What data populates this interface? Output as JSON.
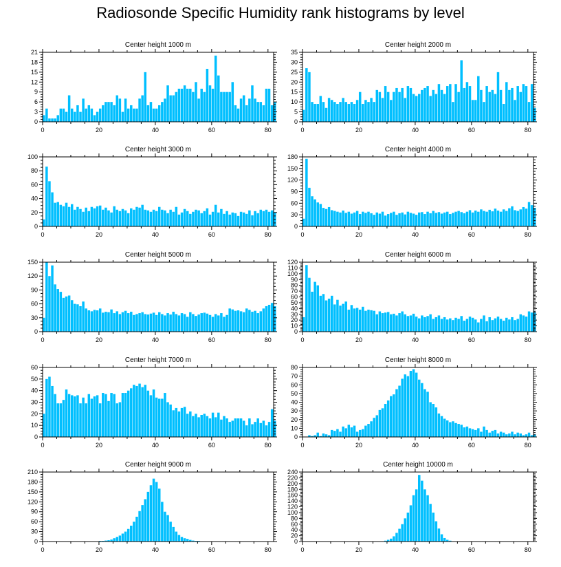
{
  "title": "Radiosonde Specific Humidity rank histograms by level",
  "bar_color": "#00bfff",
  "chart_data": [
    {
      "type": "bar",
      "title": "Center height 1000 m",
      "xlim": [
        0,
        82
      ],
      "ylim": [
        0,
        21
      ],
      "yticks": [
        0,
        3,
        6,
        9,
        12,
        15,
        18,
        21
      ],
      "xticks": [
        0,
        20,
        40,
        60,
        80
      ],
      "values": [
        2,
        4,
        1,
        1,
        1,
        2,
        4,
        4,
        3,
        8,
        4,
        3,
        5,
        3,
        7,
        4,
        5,
        4,
        2,
        3,
        4,
        5,
        6,
        6,
        6,
        5,
        8,
        7,
        3,
        7,
        4,
        5,
        4,
        4,
        7,
        8,
        15,
        5,
        6,
        4,
        4,
        5,
        6,
        7,
        11,
        8,
        8,
        9,
        10,
        10,
        11,
        10,
        10,
        9,
        12,
        7,
        10,
        9,
        16,
        11,
        10,
        20,
        14,
        9,
        9,
        9,
        9,
        12,
        5,
        4,
        7,
        8,
        5,
        7,
        11,
        7,
        6,
        6,
        5,
        10,
        10,
        5,
        6
      ]
    },
    {
      "type": "bar",
      "title": "Center height 2000 m",
      "xlim": [
        0,
        82
      ],
      "ylim": [
        0,
        35
      ],
      "yticks": [
        0,
        5,
        10,
        15,
        20,
        25,
        30,
        35
      ],
      "xticks": [
        0,
        20,
        40,
        60,
        80
      ],
      "values": [
        6,
        27,
        25,
        10,
        9,
        9,
        13,
        10,
        7,
        12,
        11,
        10,
        9,
        10,
        12,
        10,
        9,
        10,
        9,
        11,
        15,
        9,
        11,
        10,
        12,
        10,
        16,
        15,
        12,
        18,
        15,
        11,
        15,
        17,
        15,
        17,
        12,
        18,
        17,
        14,
        13,
        14,
        16,
        17,
        18,
        13,
        16,
        14,
        19,
        16,
        14,
        18,
        19,
        10,
        19,
        15,
        31,
        17,
        20,
        18,
        11,
        11,
        23,
        16,
        10,
        18,
        15,
        16,
        14,
        25,
        16,
        9,
        20,
        16,
        17,
        11,
        18,
        15,
        19,
        18,
        10,
        19,
        7
      ]
    },
    {
      "type": "bar",
      "title": "Center height 3000 m",
      "xlim": [
        0,
        82
      ],
      "ylim": [
        0,
        100
      ],
      "yticks": [
        0,
        20,
        40,
        60,
        80,
        100
      ],
      "xticks": [
        0,
        20,
        40,
        60,
        80
      ],
      "values": [
        10,
        86,
        65,
        49,
        34,
        35,
        31,
        29,
        34,
        28,
        32,
        24,
        28,
        25,
        21,
        27,
        22,
        28,
        26,
        29,
        30,
        24,
        27,
        23,
        20,
        29,
        24,
        22,
        25,
        23,
        19,
        26,
        24,
        28,
        27,
        31,
        24,
        23,
        21,
        24,
        22,
        28,
        24,
        23,
        19,
        24,
        21,
        28,
        17,
        20,
        25,
        22,
        18,
        21,
        24,
        23,
        19,
        22,
        26,
        17,
        21,
        31,
        20,
        25,
        18,
        22,
        17,
        20,
        19,
        15,
        21,
        20,
        18,
        23,
        16,
        22,
        19,
        24,
        22,
        24,
        21,
        23,
        20
      ]
    },
    {
      "type": "bar",
      "title": "Center height 4000 m",
      "xlim": [
        0,
        82
      ],
      "ylim": [
        0,
        180
      ],
      "yticks": [
        0,
        30,
        60,
        90,
        120,
        150,
        180
      ],
      "xticks": [
        0,
        20,
        40,
        60,
        80
      ],
      "values": [
        20,
        175,
        100,
        78,
        70,
        62,
        58,
        48,
        45,
        50,
        42,
        40,
        38,
        36,
        41,
        35,
        38,
        33,
        36,
        40,
        32,
        38,
        35,
        38,
        34,
        30,
        36,
        33,
        38,
        28,
        32,
        35,
        38,
        30,
        34,
        36,
        31,
        38,
        35,
        33,
        30,
        36,
        37,
        32,
        38,
        34,
        40,
        35,
        37,
        33,
        36,
        38,
        32,
        35,
        38,
        40,
        37,
        34,
        38,
        42,
        36,
        41,
        38,
        44,
        40,
        38,
        43,
        39,
        46,
        41,
        38,
        44,
        40,
        47,
        52,
        42,
        40,
        44,
        50,
        46,
        63,
        55,
        48
      ]
    },
    {
      "type": "bar",
      "title": "Center height 5000 m",
      "xlim": [
        0,
        82
      ],
      "ylim": [
        0,
        150
      ],
      "yticks": [
        0,
        30,
        60,
        90,
        120,
        150
      ],
      "xticks": [
        0,
        20,
        40,
        60,
        80
      ],
      "values": [
        30,
        150,
        120,
        143,
        102,
        92,
        86,
        73,
        76,
        78,
        68,
        60,
        59,
        55,
        65,
        50,
        46,
        44,
        47,
        46,
        50,
        41,
        43,
        42,
        48,
        40,
        44,
        38,
        42,
        45,
        40,
        43,
        36,
        38,
        40,
        42,
        38,
        37,
        39,
        41,
        36,
        42,
        38,
        35,
        40,
        37,
        43,
        38,
        35,
        40,
        38,
        32,
        42,
        38,
        34,
        37,
        40,
        41,
        39,
        36,
        32,
        38,
        35,
        40,
        32,
        36,
        50,
        48,
        45,
        46,
        44,
        42,
        50,
        47,
        43,
        45,
        40,
        44,
        50,
        55,
        58,
        62,
        55
      ]
    },
    {
      "type": "bar",
      "title": "Center height 6000 m",
      "xlim": [
        0,
        82
      ],
      "ylim": [
        0,
        120
      ],
      "yticks": [
        0,
        10,
        20,
        30,
        40,
        50,
        60,
        70,
        80,
        90,
        100,
        110,
        120
      ],
      "xticks": [
        0,
        20,
        40,
        60,
        80
      ],
      "values": [
        25,
        115,
        93,
        69,
        86,
        80,
        62,
        65,
        54,
        57,
        62,
        47,
        55,
        45,
        48,
        52,
        38,
        46,
        40,
        41,
        38,
        43,
        36,
        38,
        37,
        36,
        30,
        35,
        32,
        33,
        34,
        30,
        31,
        28,
        32,
        35,
        30,
        27,
        28,
        31,
        26,
        23,
        28,
        25,
        27,
        30,
        22,
        25,
        28,
        22,
        25,
        21,
        23,
        20,
        24,
        22,
        27,
        19,
        22,
        26,
        24,
        21,
        16,
        22,
        28,
        18,
        25,
        20,
        23,
        26,
        22,
        19,
        24,
        21,
        25,
        20,
        22,
        30,
        28,
        26,
        35,
        33,
        34
      ]
    },
    {
      "type": "bar",
      "title": "Center height 7000 m",
      "xlim": [
        0,
        82
      ],
      "ylim": [
        0,
        60
      ],
      "yticks": [
        0,
        10,
        20,
        30,
        40,
        50,
        60
      ],
      "xticks": [
        0,
        20,
        40,
        60,
        80
      ],
      "values": [
        20,
        50,
        52,
        44,
        37,
        29,
        29,
        32,
        41,
        37,
        36,
        35,
        36,
        29,
        34,
        29,
        37,
        33,
        35,
        36,
        29,
        38,
        37,
        31,
        38,
        37,
        29,
        30,
        38,
        38,
        40,
        42,
        45,
        44,
        46,
        43,
        45,
        40,
        36,
        41,
        34,
        33,
        33,
        38,
        30,
        28,
        23,
        25,
        22,
        25,
        26,
        20,
        22,
        18,
        20,
        17,
        19,
        20,
        18,
        16,
        21,
        17,
        21,
        15,
        18,
        16,
        13,
        14,
        16,
        16,
        16,
        14,
        10,
        16,
        11,
        13,
        16,
        12,
        14,
        10,
        13,
        24,
        14
      ]
    },
    {
      "type": "bar",
      "title": "Center height 8000 m",
      "xlim": [
        0,
        82
      ],
      "ylim": [
        0,
        80
      ],
      "yticks": [
        0,
        10,
        20,
        30,
        40,
        50,
        60,
        70,
        80
      ],
      "xticks": [
        0,
        20,
        40,
        60,
        80
      ],
      "values": [
        0,
        0,
        2,
        1,
        2,
        5,
        1,
        4,
        3,
        2,
        8,
        7,
        9,
        6,
        12,
        10,
        14,
        11,
        13,
        6,
        8,
        9,
        13,
        15,
        18,
        22,
        25,
        31,
        33,
        38,
        42,
        47,
        49,
        55,
        59,
        67,
        72,
        70,
        76,
        78,
        74,
        66,
        62,
        55,
        52,
        40,
        38,
        34,
        27,
        24,
        21,
        19,
        17,
        18,
        16,
        15,
        14,
        11,
        12,
        10,
        9,
        8,
        10,
        6,
        12,
        8,
        5,
        7,
        8,
        4,
        6,
        5,
        3,
        4,
        6,
        3,
        5,
        4,
        2,
        3,
        5,
        2,
        3
      ]
    },
    {
      "type": "bar",
      "title": "Center height 9000 m",
      "xlim": [
        0,
        82
      ],
      "ylim": [
        0,
        210
      ],
      "yticks": [
        0,
        30,
        60,
        90,
        120,
        150,
        180,
        210
      ],
      "xticks": [
        0,
        20,
        40,
        60,
        80
      ],
      "values": [
        0,
        0,
        0,
        0,
        0,
        0,
        0,
        0,
        0,
        0,
        0,
        0,
        0,
        0,
        0,
        0,
        0,
        0,
        1,
        1,
        2,
        2,
        3,
        4,
        6,
        10,
        14,
        18,
        24,
        30,
        38,
        48,
        60,
        75,
        92,
        110,
        128,
        150,
        170,
        190,
        180,
        160,
        120,
        90,
        80,
        60,
        44,
        30,
        20,
        14,
        10,
        8,
        5,
        3,
        2,
        2,
        1,
        1,
        1,
        0,
        0,
        0,
        0,
        0,
        0,
        0,
        0,
        0,
        0,
        0,
        0,
        0,
        0,
        0,
        0,
        0,
        0,
        0,
        0,
        0,
        0,
        0,
        0
      ]
    },
    {
      "type": "bar",
      "title": "Center height 10000 m",
      "xlim": [
        0,
        82
      ],
      "ylim": [
        0,
        240
      ],
      "yticks": [
        0,
        20,
        40,
        60,
        80,
        100,
        120,
        140,
        160,
        180,
        200,
        220,
        240
      ],
      "xticks": [
        0,
        20,
        40,
        60,
        80
      ],
      "values": [
        0,
        0,
        0,
        0,
        0,
        0,
        0,
        0,
        0,
        0,
        0,
        0,
        0,
        0,
        0,
        0,
        0,
        0,
        0,
        0,
        0,
        0,
        0,
        0,
        0,
        0,
        0,
        0,
        1,
        3,
        6,
        10,
        18,
        30,
        44,
        60,
        80,
        100,
        125,
        160,
        180,
        230,
        210,
        180,
        160,
        130,
        100,
        70,
        45,
        25,
        12,
        6,
        3,
        1,
        0,
        0,
        0,
        0,
        0,
        0,
        0,
        0,
        0,
        0,
        0,
        0,
        0,
        0,
        0,
        0,
        0,
        0,
        0,
        0,
        0,
        0,
        0,
        0,
        0,
        0,
        0,
        0,
        0
      ]
    }
  ]
}
